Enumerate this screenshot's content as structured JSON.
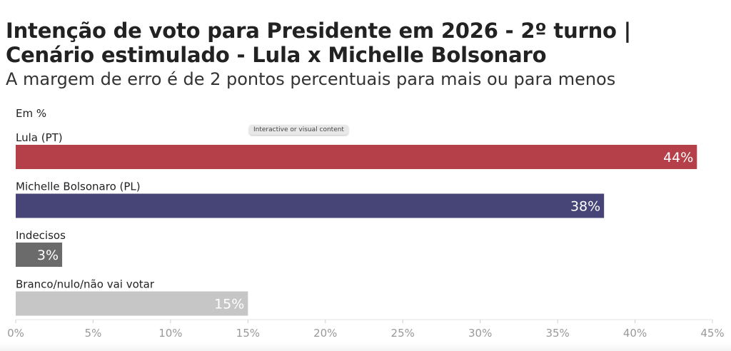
{
  "header": {
    "title_line1": "Intenção de voto para Presidente em 2026 - 2º turno |",
    "title_line2": "Cenário estimulado - Lula x Michelle Bolsonaro",
    "subtitle": "A margem de erro é de 2 pontos percentuais para mais ou para menos",
    "unit_label": "Em %"
  },
  "tooltip": {
    "label": "Interactive or visual content"
  },
  "chart_data": {
    "type": "bar",
    "orientation": "horizontal",
    "categories": [
      "Lula (PT)",
      "Michelle Bolsonaro (PL)",
      "Indecisos",
      "Branco/nulo/não vai votar"
    ],
    "values": [
      44,
      38,
      3,
      15
    ],
    "data_labels": [
      "44%",
      "38%",
      "3%",
      "15%"
    ],
    "colors": [
      "#b5404a",
      "#474577",
      "#6b6b6b",
      "#c6c6c6"
    ],
    "xlim": [
      0,
      45
    ],
    "x_ticks": [
      0,
      5,
      10,
      15,
      20,
      25,
      30,
      35,
      40,
      45
    ],
    "x_tick_labels": [
      "0%",
      "5%",
      "10%",
      "15%",
      "20%",
      "25%",
      "30%",
      "35%",
      "40%",
      "45%"
    ],
    "grid": false
  }
}
